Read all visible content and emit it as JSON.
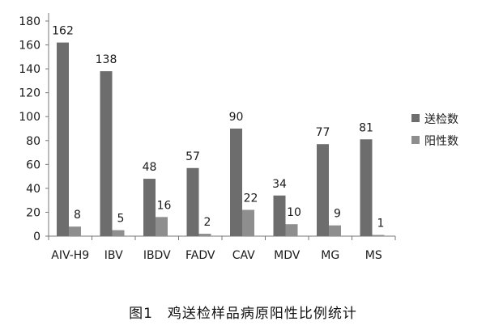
{
  "caption": "图1　鸡送检样品病原阳性比例统计",
  "chart_data": {
    "type": "bar",
    "title": "",
    "xlabel": "",
    "ylabel": "",
    "ylim": [
      0,
      180
    ],
    "yticks": [
      0,
      20,
      40,
      60,
      80,
      100,
      120,
      140,
      160,
      180
    ],
    "grid": false,
    "legend_position": "right",
    "categories": [
      "AIV-H9",
      "IBV",
      "IBDV",
      "FADV",
      "CAV",
      "MDV",
      "MG",
      "MS"
    ],
    "series": [
      {
        "name": "送检数",
        "color": "#6d6d6d",
        "values": [
          162,
          138,
          48,
          57,
          90,
          34,
          77,
          81
        ]
      },
      {
        "name": "阳性数",
        "color": "#8e8e8e",
        "values": [
          8,
          5,
          16,
          2,
          22,
          10,
          9,
          1
        ]
      }
    ]
  }
}
